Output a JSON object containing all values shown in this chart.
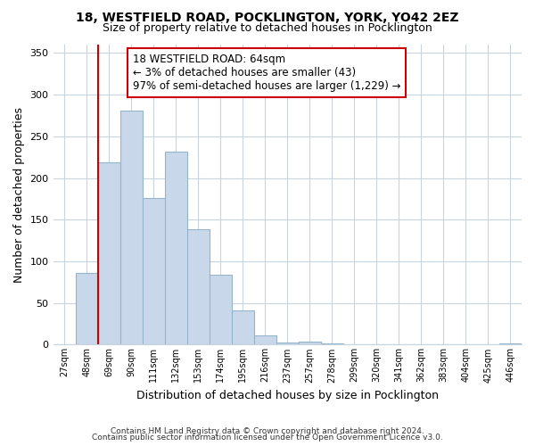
{
  "title": "18, WESTFIELD ROAD, POCKLINGTON, YORK, YO42 2EZ",
  "subtitle": "Size of property relative to detached houses in Pocklington",
  "xlabel": "Distribution of detached houses by size in Pocklington",
  "ylabel": "Number of detached properties",
  "footer1": "Contains HM Land Registry data © Crown copyright and database right 2024.",
  "footer2": "Contains public sector information licensed under the Open Government Licence v3.0.",
  "annotation_title": "18 WESTFIELD ROAD: 64sqm",
  "annotation_line2": "← 3% of detached houses are smaller (43)",
  "annotation_line3": "97% of semi-detached houses are larger (1,229) →",
  "bar_labels": [
    "27sqm",
    "48sqm",
    "69sqm",
    "90sqm",
    "111sqm",
    "132sqm",
    "153sqm",
    "174sqm",
    "195sqm",
    "216sqm",
    "237sqm",
    "257sqm",
    "278sqm",
    "299sqm",
    "320sqm",
    "341sqm",
    "362sqm",
    "383sqm",
    "404sqm",
    "425sqm",
    "446sqm"
  ],
  "bar_values": [
    0,
    86,
    219,
    281,
    176,
    232,
    139,
    84,
    41,
    11,
    3,
    4,
    1,
    0,
    0,
    0,
    0,
    0,
    0,
    0,
    1
  ],
  "bar_color": "#c8d8ea",
  "bar_edge_color": "#94b4cc",
  "highlight_color": "#cc0000",
  "red_line_x": 1.5,
  "ylim": [
    0,
    360
  ],
  "yticks": [
    0,
    50,
    100,
    150,
    200,
    250,
    300,
    350
  ],
  "annotation_box_color": "#ffffff",
  "annotation_box_edge": "#cc0000",
  "grid_color": "#c8d4de",
  "background_color": "#ffffff",
  "title_fontsize": 10,
  "subtitle_fontsize": 9
}
